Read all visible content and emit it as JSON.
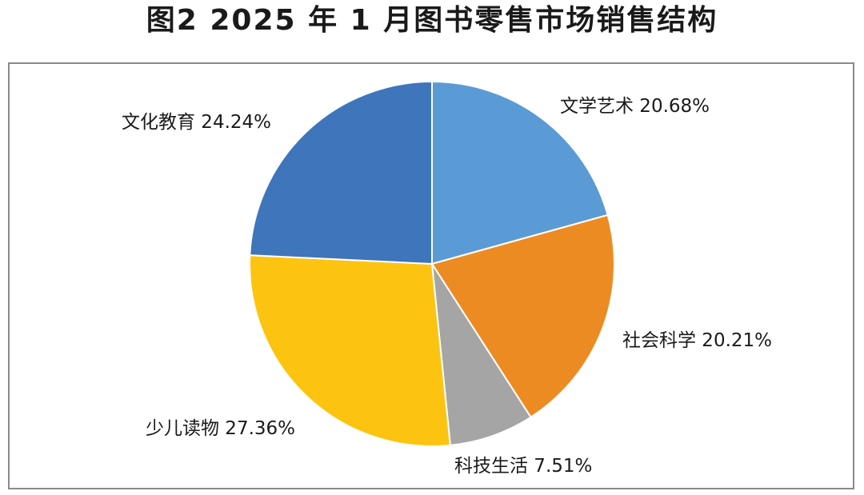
{
  "title": "图2  2025 年 1 月图书零售市场销售结构",
  "chart_data": {
    "type": "pie",
    "title": "图2  2025 年 1 月图书零售市场销售结构",
    "slices": [
      {
        "name": "文学艺术",
        "value": 20.68,
        "label": "文学艺术 20.68%",
        "color": "#5b9bd5"
      },
      {
        "name": "社会科学",
        "value": 20.21,
        "label": "社会科学 20.21%",
        "color": "#ed8b23"
      },
      {
        "name": "科技生活",
        "value": 7.51,
        "label": "科技生活 7.51%",
        "color": "#a5a5a5"
      },
      {
        "name": "少儿读物",
        "value": 27.36,
        "label": "少儿读物 27.36%",
        "color": "#fcc410"
      },
      {
        "name": "文化教育",
        "value": 24.24,
        "label": "文化教育 24.24%",
        "color": "#3e75bb"
      }
    ],
    "start_angle": "12 o'clock",
    "direction": "clockwise",
    "legend": "none (labels beside slices)"
  }
}
